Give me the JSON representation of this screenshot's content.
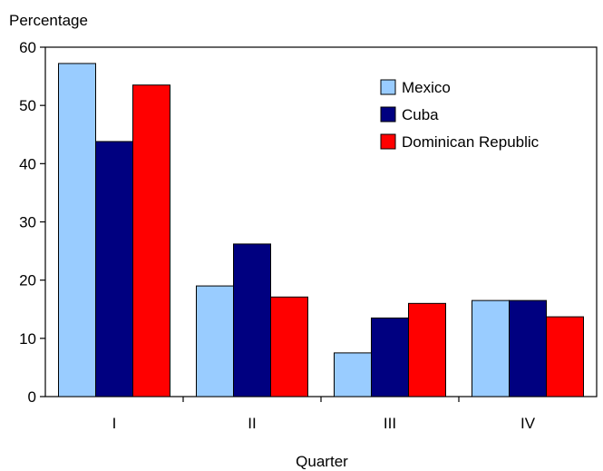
{
  "chart_data": {
    "type": "bar",
    "title": "",
    "xlabel": "Quarter",
    "ylabel": "Percentage",
    "ylim": [
      0,
      60
    ],
    "yticks": [
      0,
      10,
      20,
      30,
      40,
      50,
      60
    ],
    "grid": false,
    "legend_position": "top-right",
    "categories": [
      "I",
      "II",
      "III",
      "IV"
    ],
    "series": [
      {
        "name": "Mexico",
        "color": "#99ccff",
        "values": [
          57.2,
          19.0,
          7.5,
          16.5
        ]
      },
      {
        "name": "Cuba",
        "color": "#000080",
        "values": [
          43.8,
          26.2,
          13.5,
          16.5
        ]
      },
      {
        "name": "Dominican Republic",
        "color": "#ff0000",
        "values": [
          53.5,
          17.1,
          16.0,
          13.7
        ]
      }
    ]
  }
}
